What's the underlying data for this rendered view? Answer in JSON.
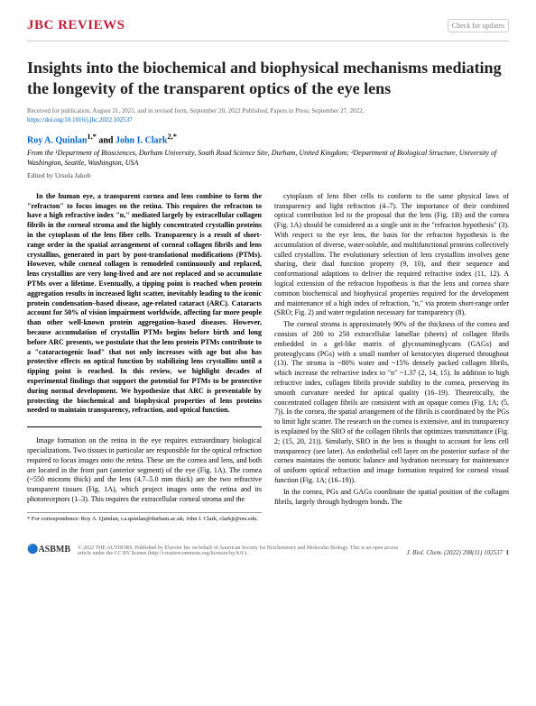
{
  "header": {
    "journal_section": "JBC REVIEWS",
    "check_badge": "Check for updates"
  },
  "article": {
    "title": "Insights into the biochemical and biophysical mechanisms mediating the longevity of the transparent optics of the eye lens",
    "received": "Received for publication, August 31, 2021, and in revised form, September 20, 2022  Published, Papers in Press, September 27, 2022,",
    "doi": "https://doi.org/10.1016/j.jbc.2022.102537",
    "authors_prefix": "Roy A. Quinlan",
    "authors_mid": " and ",
    "authors_suffix": "John I. Clark",
    "affiliations": "From the ¹Department of Biosciences, Durham University, South Road Science Site, Durham, United Kingdom; ²Department of Biological Structure, University of Washington, Seattle, Washington, USA",
    "edited_by": "Edited by Ursula Jakob"
  },
  "abstract": "In the human eye, a transparent cornea and lens combine to form the \"refracton\" to focus images on the retina. This requires the refracton to have a high refractive index \"n,\" mediated largely by extracellular collagen fibrils in the corneal stroma and the highly concentrated crystallin proteins in the cytoplasm of the lens fiber cells. Transparency is a result of short-range order in the spatial arrangement of corneal collagen fibrils and lens crystallins, generated in part by post-translational modifications (PTMs). However, while corneal collagen is remodeled continuously and replaced, lens crystallins are very long-lived and are not replaced and so accumulate PTMs over a lifetime. Eventually, a tipping point is reached when protein aggregation results in increased light scatter, inevitably leading to the iconic protein condensation–based disease, age-related cataract (ARC). Cataracts account for 50% of vision impairment worldwide, affecting far more people than other well-known protein aggregation–based diseases. However, because accumulation of crystallin PTMs begins before birth and long before ARC presents, we postulate that the lens protein PTMs contribute to a \"cataractogenic load\" that not only increases with age but also has protective effects on optical function by stabilizing lens crystallins until a tipping point is reached. In this review, we highlight decades of experimental findings that support the potential for PTMs to be protective during normal development. We hypothesize that ARC is preventable by protecting the biochemical and biophysical properties of lens proteins needed to maintain transparency, refraction, and optical function.",
  "body_left_p1": "Image formation on the retina in the eye requires extraordinary biological specializations. Two tissues in particular are responsible for the optical refraction required to focus images onto the retina. These are the cornea and lens, and both are located in the front part (anterior segment) of the eye (Fig. 1A). The cornea (~550 microns thick) and the lens (4.7–5.0 mm thick) are the two refractive transparent tissues (Fig. 1A), which project images onto the retina and its photoreceptors (1–3). This requires the extracellular corneal stroma and the",
  "body_right_p1": "cytoplasm of lens fiber cells to conform to the same physical laws of transparency and light refraction (4–7). The importance of their combined optical contribution led to the proposal that the lens (Fig. 1B) and the cornea (Fig. 1A) should be considered as a single unit in the \"refracton hypothesis\" (3). With respect to the eye lens, the basis for the refracton hypothesis is the accumulation of diverse, water-soluble, and multifunctional proteins collectively called crystallins. The evolutionary selection of lens crystallins involves gene sharing, their dual function property (9, 10), and their sequence and conformational adaptions to deliver the required refractive index (11, 12). A logical extension of the refracton hypothesis is that the lens and cornea share common biochemical and biophysical properties required for the development and maintenance of a high index of refraction, \"n,\" via protein short-range order (SRO; Fig. 2) and water regulation necessary for transparency (8).",
  "body_right_p2": "The corneal stroma is approximately 90% of the thickness of the cornea and consists of 200 to 250 extracellular lamellae (sheets) of collagen fibrils embedded in a gel-like matrix of glycosaminoglycans (GAGs) and proteoglycans (PGs) with a small number of keratocytes dispersed throughout (13). The stroma is ~80% water and ~15% densely packed collagen fibrils, which increase the refractive index to \"n\" ~1.37 (2, 14, 15). In addition to high refractive index, collagen fibrils provide stability to the cornea, preserving its smooth curvature needed for optical quality (16–19). Theoretically, the concentrated collagen fibrils are consistent with an opaque cornea (Fig. 1A; (5, 7)). In the cornea, the spatial arrangement of the fibrils is coordinated by the PGs to limit light scatter. The research on the cornea is extensive, and its transparency is explained by the SRO of the collagen fibrils that optimizes transmittance (Fig. 2; (15, 20, 21)). Similarly, SRO in the lens is thought to account for lens cell transparency (see later). An endothelial cell layer on the posterior surface of the cornea maintains the osmotic balance and hydration necessary for maintenance of uniform optical refraction and image formation required for corneal visual function (Fig. 1A; (16–19)).",
  "body_right_p3": "In the cornea, PGs and GAGs coordinate the spatial position of the collagen fibrils, largely through hydrogen bonds. The",
  "correspondence": "* For correspondence: Roy A. Quinlan, r.a.quinlan@durham.ac.uk; John I. Clark, clarkji@uw.edu.",
  "footer": {
    "logo": "ASBMB",
    "copyright": "© 2022 THE AUTHORS. Published by Elsevier Inc on behalf of American Society for Biochemistry and Molecular Biology. This is an open access article under the CC BY license (http://creativecommons.org/licenses/by/4.0/).",
    "journal": "J. Biol. Chem. (2022) 298(11) 102537",
    "page": "1"
  }
}
